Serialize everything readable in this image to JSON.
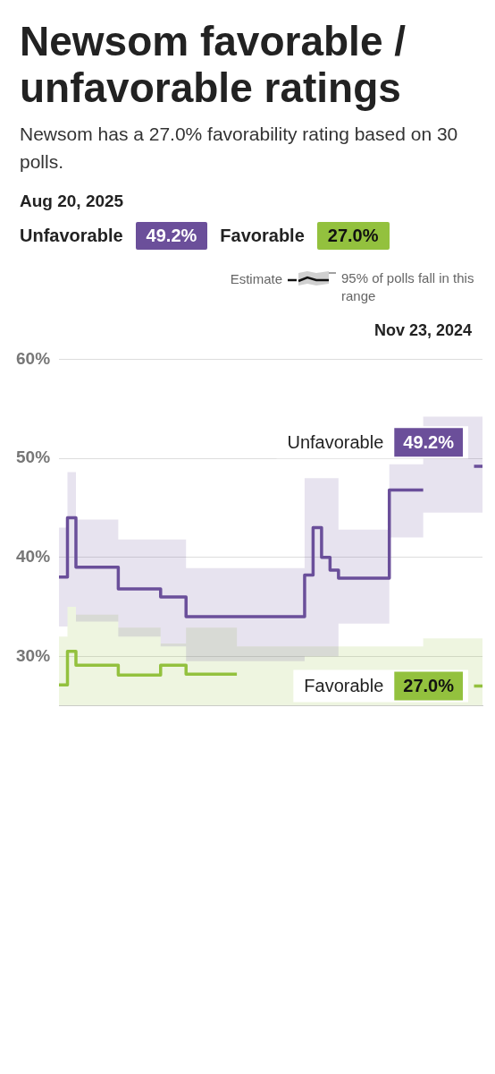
{
  "chart_data": {
    "type": "step",
    "title": "Newsom favorable / unfavorable ratings",
    "subtitle": "Newsom has a 27.0% favorability rating based on 30 polls.",
    "annotations": [
      "Aug 20, 2025",
      "Estimate",
      "95% of polls fall in this range",
      "Nov 23, 2024"
    ],
    "categories": [
      null,
      null,
      null,
      null,
      null,
      null,
      null,
      null,
      null,
      null,
      null,
      null,
      null,
      null,
      null,
      null,
      null,
      null,
      null,
      null,
      null,
      null,
      null,
      null,
      null,
      null,
      null,
      null,
      null,
      null,
      null,
      null,
      null,
      null,
      null,
      null,
      null,
      null,
      null,
      null,
      null,
      null,
      null,
      null,
      null,
      null,
      null,
      null,
      null,
      null,
      null
    ],
    "series": [
      {
        "name": "Unfavorable",
        "color": "#6b4f9a",
        "values": [
          38,
          38,
          44,
          39,
          39,
          39,
          39,
          39,
          36.8,
          36.8,
          36.8,
          36.8,
          36.8,
          36,
          36,
          36,
          34,
          34,
          34,
          34,
          34,
          34,
          34,
          34,
          34,
          34,
          34,
          34,
          34,
          34,
          38.2,
          43,
          40,
          38.7,
          37.9,
          37.9,
          37.9,
          37.9,
          37.9,
          37.9,
          46.8,
          46.8,
          46.8,
          46.8,
          null,
          null,
          null,
          null,
          null,
          49.2,
          49.2
        ],
        "lower": [
          33,
          33,
          35,
          33.5,
          33.5,
          33.5,
          33.5,
          33.5,
          32,
          32,
          32,
          32,
          32,
          31,
          31,
          31,
          29.5,
          29.5,
          29.5,
          29.5,
          29.5,
          29.5,
          29.5,
          29.5,
          29.5,
          29.5,
          29.5,
          29.5,
          29.5,
          29.5,
          30,
          30,
          30,
          30,
          33.3,
          33.3,
          33.3,
          33.3,
          33.3,
          33.3,
          42,
          42,
          42,
          42,
          44.5,
          44.5,
          44.5,
          44.5,
          44.5,
          44.5,
          44.5
        ],
        "upper": [
          43,
          43,
          48.6,
          43.8,
          43.8,
          43.8,
          43.8,
          43.8,
          41.8,
          41.8,
          41.8,
          41.8,
          41.8,
          41.8,
          41.8,
          41.8,
          38.9,
          38.9,
          38.9,
          38.9,
          38.9,
          38.9,
          38.9,
          38.9,
          38.9,
          38.9,
          38.9,
          38.9,
          38.9,
          38.9,
          48,
          48,
          48,
          48,
          42.8,
          42.8,
          42.8,
          42.8,
          42.8,
          42.8,
          49.4,
          49.4,
          49.4,
          49.4,
          54.2,
          54.2,
          54.2,
          54.2,
          54.2,
          54.2,
          54.2
        ],
        "value_labels": [
          null,
          null,
          null,
          null,
          null,
          null,
          null,
          null,
          null,
          null,
          null,
          null,
          null,
          null,
          null,
          null,
          null,
          null,
          null,
          null,
          null,
          null,
          null,
          null,
          null,
          null,
          null,
          null,
          null,
          null,
          null,
          null,
          null,
          null,
          null,
          null,
          null,
          null,
          null,
          null,
          null,
          null,
          null,
          null,
          null,
          null,
          null,
          null,
          null,
          null,
          "49.2%"
        ]
      },
      {
        "name": "Favorable",
        "color": "#93c13e",
        "values": [
          27.1,
          27.1,
          30.5,
          29.1,
          29.1,
          29.1,
          29.1,
          29.1,
          28.1,
          28.1,
          28.1,
          28.1,
          28.1,
          29.1,
          29.1,
          29.1,
          28.2,
          28.2,
          28.2,
          28.2,
          28.2,
          28.2,
          null,
          null,
          null,
          null,
          null,
          null,
          null,
          null,
          null,
          null,
          null,
          null,
          null,
          null,
          null,
          null,
          null,
          null,
          null,
          null,
          null,
          null,
          null,
          null,
          null,
          null,
          null,
          27,
          27
        ],
        "lower": [
          25,
          25,
          25,
          25,
          25,
          25,
          25,
          25,
          25,
          25,
          25,
          25,
          25,
          25,
          25,
          25,
          25,
          25,
          25,
          25,
          25,
          25,
          25,
          25,
          25,
          25,
          25,
          25,
          25,
          25,
          25,
          25,
          25,
          25,
          25,
          25,
          25,
          25,
          25,
          25,
          25,
          25,
          25,
          25,
          25,
          25,
          25,
          25,
          25,
          25,
          25
        ],
        "upper": [
          32,
          32,
          35,
          34.2,
          34.2,
          34.2,
          34.2,
          34.2,
          32.9,
          32.9,
          32.9,
          32.9,
          32.9,
          31.3,
          31.3,
          31.3,
          32.9,
          32.9,
          32.9,
          32.9,
          32.9,
          32.9,
          31,
          31,
          31,
          31,
          31,
          31,
          31,
          31,
          31,
          31,
          31,
          31,
          31,
          31,
          31,
          31,
          31,
          31,
          31,
          31,
          31,
          31,
          31.8,
          31.8,
          31.8,
          31.8,
          31.8,
          31.8,
          31.8
        ],
        "value_labels": [
          null,
          null,
          null,
          null,
          null,
          null,
          null,
          null,
          null,
          null,
          null,
          null,
          null,
          null,
          null,
          null,
          null,
          null,
          null,
          null,
          null,
          null,
          null,
          null,
          null,
          null,
          null,
          null,
          null,
          null,
          null,
          null,
          null,
          null,
          null,
          null,
          null,
          null,
          null,
          null,
          null,
          null,
          null,
          null,
          null,
          null,
          null,
          null,
          null,
          null,
          "27.0%"
        ]
      }
    ],
    "ylim": [
      25,
      60
    ],
    "yticks": [
      {
        "value": 30,
        "label": "30%"
      },
      {
        "value": 40,
        "label": "40%"
      },
      {
        "value": 50,
        "label": "50%"
      },
      {
        "value": 60,
        "label": "60%"
      }
    ],
    "grid": "y",
    "legend": "right",
    "tick_labels": "y",
    "marker": "none",
    "line_style": "solid"
  }
}
